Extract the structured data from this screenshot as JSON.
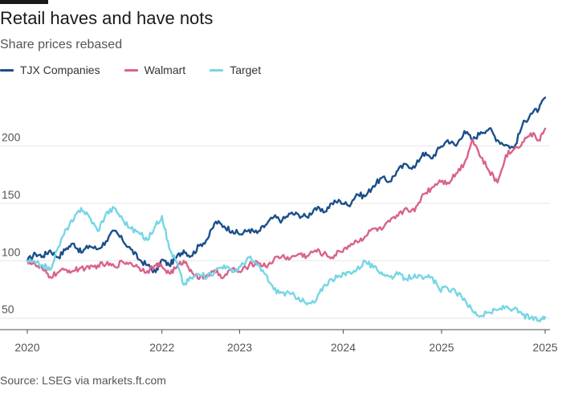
{
  "header": {
    "title": "Retail haves and have nots",
    "subtitle": "Share prices rebased"
  },
  "footer": {
    "source": "Source: LSEG via markets.ft.com"
  },
  "colors": {
    "tjx": "#1a4f8b",
    "walmart": "#d9628d",
    "target": "#76d6e5",
    "grid": "#e6e6e6",
    "axis": "#4d4d4d"
  },
  "chart_data": {
    "type": "line",
    "title": "Retail haves and have nots",
    "subtitle": "Share prices rebased",
    "xlabel": "",
    "ylabel": "",
    "xlim": [
      2020.0,
      2025.0
    ],
    "ylim": [
      40,
      250
    ],
    "yticks": [
      50,
      100,
      150,
      200
    ],
    "ytick_labels": [
      "50",
      "100",
      "150",
      "200"
    ],
    "xticks": [
      {
        "pos": 2020.0,
        "label": "2020"
      },
      {
        "pos": 2021.3,
        "label": "2022"
      },
      {
        "pos": 2022.05,
        "label": "2023"
      },
      {
        "pos": 2023.05,
        "label": "2024"
      },
      {
        "pos": 2024.0,
        "label": "2025"
      },
      {
        "pos": 2025.0,
        "label": "2025"
      }
    ],
    "grid": true,
    "legend_position": "top-left",
    "series": [
      {
        "name": "TJX Companies",
        "color": "#1a4f8b",
        "x": [
          2020.0,
          2020.08,
          2020.15,
          2020.22,
          2020.3,
          2020.38,
          2020.45,
          2020.52,
          2020.6,
          2020.68,
          2020.76,
          2020.84,
          2020.92,
          2021.0,
          2021.08,
          2021.16,
          2021.24,
          2021.3,
          2021.37,
          2021.44,
          2021.51,
          2021.58,
          2021.66,
          2021.74,
          2021.82,
          2021.9,
          2021.98,
          2022.06,
          2022.14,
          2022.22,
          2022.3,
          2022.38,
          2022.46,
          2022.54,
          2022.62,
          2022.7,
          2022.78,
          2022.86,
          2022.94,
          2023.02,
          2023.1,
          2023.18,
          2023.26,
          2023.34,
          2023.42,
          2023.5,
          2023.58,
          2023.66,
          2023.74,
          2023.82,
          2023.9,
          2023.98,
          2024.06,
          2024.14,
          2024.22,
          2024.3,
          2024.38,
          2024.46,
          2024.54,
          2024.62,
          2024.7,
          2024.78,
          2024.86,
          2024.94,
          2025.0
        ],
        "values": [
          100,
          106,
          104,
          109,
          103,
          111,
          115,
          107,
          113,
          110,
          117,
          126,
          118,
          110,
          101,
          96,
          90,
          101,
          96,
          103,
          109,
          104,
          113,
          119,
          134,
          130,
          126,
          123,
          127,
          124,
          131,
          138,
          135,
          141,
          140,
          138,
          146,
          142,
          150,
          152,
          148,
          158,
          156,
          165,
          172,
          169,
          179,
          184,
          181,
          194,
          189,
          198,
          205,
          200,
          213,
          205,
          212,
          215,
          205,
          201,
          198,
          218,
          228,
          232,
          242
        ]
      },
      {
        "name": "Walmart",
        "color": "#d9628d",
        "x": [
          2020.0,
          2020.08,
          2020.15,
          2020.22,
          2020.3,
          2020.38,
          2020.45,
          2020.52,
          2020.6,
          2020.68,
          2020.76,
          2020.84,
          2020.92,
          2021.0,
          2021.08,
          2021.16,
          2021.24,
          2021.3,
          2021.37,
          2021.44,
          2021.51,
          2021.58,
          2021.66,
          2021.74,
          2021.82,
          2021.9,
          2021.98,
          2022.06,
          2022.14,
          2022.22,
          2022.3,
          2022.38,
          2022.46,
          2022.54,
          2022.62,
          2022.7,
          2022.78,
          2022.86,
          2022.94,
          2023.02,
          2023.1,
          2023.18,
          2023.26,
          2023.34,
          2023.42,
          2023.5,
          2023.58,
          2023.66,
          2023.74,
          2023.82,
          2023.9,
          2023.98,
          2024.06,
          2024.14,
          2024.22,
          2024.3,
          2024.38,
          2024.46,
          2024.54,
          2024.62,
          2024.7,
          2024.78,
          2024.86,
          2024.94,
          2025.0
        ],
        "values": [
          100,
          96,
          92,
          86,
          90,
          92,
          91,
          94,
          93,
          96,
          97,
          95,
          99,
          98,
          94,
          91,
          96,
          95,
          89,
          94,
          100,
          92,
          84,
          88,
          90,
          86,
          93,
          90,
          96,
          99,
          95,
          101,
          104,
          102,
          106,
          104,
          109,
          106,
          103,
          108,
          113,
          117,
          121,
          128,
          127,
          134,
          139,
          146,
          143,
          158,
          163,
          170,
          168,
          176,
          185,
          206,
          190,
          178,
          168,
          192,
          197,
          203,
          211,
          205,
          215
        ]
      },
      {
        "name": "Target",
        "color": "#76d6e5",
        "x": [
          2020.0,
          2020.08,
          2020.15,
          2020.22,
          2020.3,
          2020.38,
          2020.45,
          2020.52,
          2020.6,
          2020.68,
          2020.76,
          2020.84,
          2020.92,
          2021.0,
          2021.08,
          2021.16,
          2021.24,
          2021.3,
          2021.37,
          2021.44,
          2021.51,
          2021.58,
          2021.66,
          2021.74,
          2021.82,
          2021.9,
          2021.98,
          2022.06,
          2022.14,
          2022.22,
          2022.3,
          2022.38,
          2022.46,
          2022.54,
          2022.62,
          2022.7,
          2022.78,
          2022.86,
          2022.94,
          2023.02,
          2023.1,
          2023.18,
          2023.26,
          2023.34,
          2023.42,
          2023.5,
          2023.58,
          2023.66,
          2023.74,
          2023.82,
          2023.9,
          2023.98,
          2024.06,
          2024.14,
          2024.22,
          2024.3,
          2024.38,
          2024.46,
          2024.54,
          2024.62,
          2024.7,
          2024.78,
          2024.86,
          2024.94,
          2025.0
        ],
        "values": [
          100,
          98,
          96,
          92,
          112,
          128,
          136,
          146,
          138,
          126,
          141,
          146,
          136,
          128,
          124,
          118,
          131,
          139,
          111,
          99,
          79,
          85,
          88,
          86,
          92,
          96,
          90,
          95,
          103,
          96,
          88,
          75,
          72,
          71,
          68,
          62,
          64,
          78,
          84,
          86,
          90,
          92,
          100,
          94,
          90,
          86,
          88,
          84,
          88,
          84,
          86,
          75,
          76,
          72,
          67,
          56,
          52,
          55,
          57,
          60,
          58,
          53,
          50,
          48,
          51
        ]
      }
    ]
  }
}
